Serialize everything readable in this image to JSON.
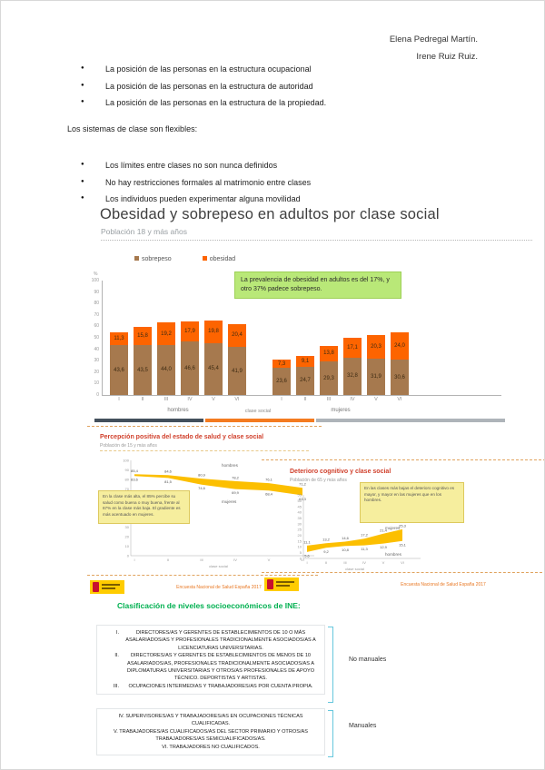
{
  "authors": {
    "line1": "Elena Pedregal Martín.",
    "line2": "Irene Ruiz Ruiz."
  },
  "intro": {
    "bullets_top": [
      "La posición de las personas en la estructura ocupacional",
      "La posición de las personas en la estructura de autoridad",
      "La posición de las personas en la estructura de la propiedad."
    ],
    "paragraph": "Los sistemas de clase son flexibles:",
    "bullets_flexibles": [
      "Los límites entre clases no son nunca definidos",
      "No hay restricciones formales al matrimonio entre clases",
      "Los individuos pueden experimentar alguna movilidad"
    ]
  },
  "chart_data": [
    {
      "type": "bar",
      "stacked": true,
      "title": "Obesidad y sobrepeso en adultos por clase social",
      "subtitle": "Población 18 y más años",
      "ylabel": "%",
      "ylim": [
        0,
        100
      ],
      "ytick_step": 10,
      "xlabel": "clase social",
      "categories": [
        "I",
        "II",
        "III",
        "IV",
        "V",
        "VI"
      ],
      "groups": [
        "hombres",
        "mujeres"
      ],
      "series": [
        {
          "name": "sobrepeso",
          "color": "#a6794e",
          "values": {
            "hombres": [
              43.6,
              43.5,
              44.0,
              46.6,
              45.4,
              41.9
            ],
            "mujeres": [
              23.6,
              24.7,
              29.3,
              32.8,
              31.9,
              30.6
            ]
          }
        },
        {
          "name": "obesidad",
          "color": "#fd6400",
          "values": {
            "hombres": [
              11.3,
              15.8,
              19.2,
              17.9,
              19.8,
              20.4
            ],
            "mujeres": [
              7.3,
              9.1,
              13.8,
              17.1,
              20.3,
              24.0
            ]
          }
        }
      ],
      "annotation": "La prevalencia de obesidad en adultos es del 17%, y otro 37% padece sobrepeso."
    },
    {
      "type": "line",
      "title": "Percepción positiva del estado de salud y clase social",
      "subtitle": "Población de 15 y más años",
      "x": [
        "I",
        "II",
        "III",
        "IV",
        "V",
        "VI"
      ],
      "series": [
        {
          "name": "hombres",
          "values": [
            85.4,
            84.6,
            80.9,
            78.2,
            76.1,
            71.2
          ]
        },
        {
          "name": "mujeres",
          "values": [
            83.6,
            81.5,
            74.6,
            69.9,
            68.4,
            63.3
          ]
        }
      ],
      "ylim": [
        0,
        100
      ],
      "ytick_step": 10,
      "xlabel": "clase social",
      "legend_position": "inline-right",
      "annotation": "En la clase más alta, el 85% percibe su salud como buena o muy buena, frente al 67% en la clase más baja. El gradiente es más acentuado en mujeres.",
      "source": "Encuesta Nacional de Salud España 2017"
    },
    {
      "type": "line",
      "title": "Deterioro cognitivo y clase social",
      "subtitle": "Población de 65 y más años",
      "x": [
        "I",
        "II",
        "III",
        "IV",
        "V",
        "VI"
      ],
      "series": [
        {
          "name": "mujeres",
          "values": [
            11.1,
            13.2,
            14.6,
            17.2,
            21.4,
            25.3
          ]
        },
        {
          "name": "hombres",
          "values": [
            5.6,
            9.2,
            10.8,
            11.3,
            12.9,
            15.1
          ]
        }
      ],
      "ylim": [
        0,
        55
      ],
      "ytick_step": 5,
      "xlabel": "clase social",
      "legend_position": "inline-right",
      "annotation": "En las clases más bajas el deterioro cognitivo es mayor, y mayor en las mujeres que en los hombres.",
      "source": "Encuesta Nacional de Salud España 2017"
    }
  ],
  "ine": {
    "heading": "Clasificación de niveles socioeconómicos de INE:",
    "no_manuales": {
      "label": "No manuales",
      "items": [
        {
          "num": "I.",
          "text": "DIRECTORES/AS Y GERENTES DE ESTABLECIMIENTOS DE 10 O MÁS ASALARIADOS/AS Y PROFESIONALES TRADICIONALMENTE ASOCIADOS/AS A LICENCIATURAS UNIVERSITARIAS."
        },
        {
          "num": "II.",
          "text": "DIRECTORES/AS Y GERENTES DE ESTABLECIMIENTOS DE MENOS DE 10 ASALARIADOS/AS, PROFESIONALES TRADICIONALMENTE ASOCIADOS/AS A DIPLOMATURAS UNIVERSITARIAS Y OTROS/AS PROFESIONALES DE APOYO TÉCNICO. DEPORTISTAS Y ARTISTAS."
        },
        {
          "num": "III.",
          "text": "OCUPACIONES INTERMEDIAS Y TRABAJADORES/AS POR CUENTA PROPIA."
        }
      ]
    },
    "manuales": {
      "label": "Manuales",
      "items": [
        "IV. SUPERVISORES/AS Y TRABAJADORES/AS EN OCUPACIONES TÉCNICAS CUALIFICADAS.",
        "V. TRABAJADORES/AS CUALIFICADOS/AS DEL SECTOR PRIMARIO Y OTROS/AS TRABAJADORES/AS SEMICUALIFICADOS/AS.",
        "VI. TRABAJADORES NO CUALIFICADOS."
      ]
    }
  },
  "colors": {
    "sobrepeso_bar": "#a6794e",
    "obesidad_bar": "#fd6400",
    "band": "#fcbf00",
    "note_green_bg": "#b9e878",
    "sticky_yellow_bg": "#f6ee9e",
    "mini_title_red": "#d0402c",
    "ine_green": "#00b050",
    "source_orange": "#e87722",
    "gov_logo_yellow": "#ffcc00",
    "deco_bars": [
      "#44505c",
      "#f47b20",
      "#aeb4b9"
    ],
    "bracket_blue": "#66c7dd"
  }
}
